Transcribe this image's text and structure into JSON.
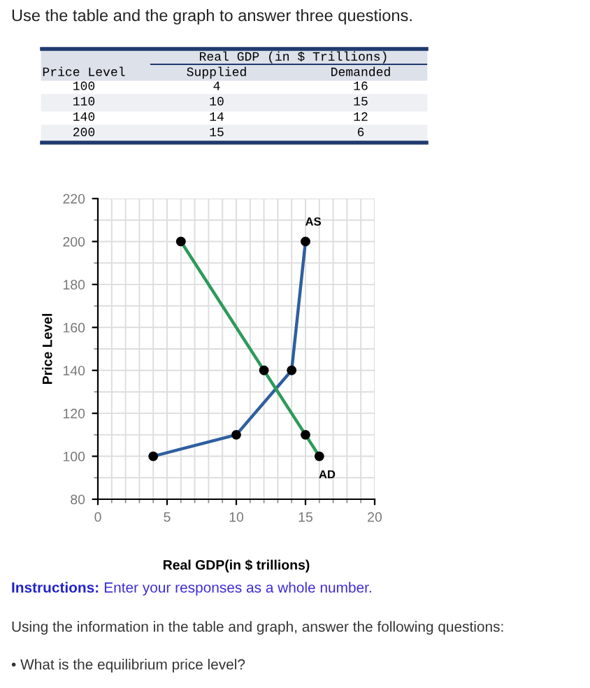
{
  "chart_data": [
    {
      "type": "other",
      "title": "Use the table and the graph to answer three questions.",
      "annotations": [
        "Real GDP (in $ Trillions)",
        "Price Level",
        "Supplied",
        "Demanded",
        "100",
        "4",
        "16",
        "110",
        "10",
        "15",
        "140",
        "14",
        "12",
        "200",
        "15",
        "6"
      ]
    },
    {
      "type": "line",
      "xlabel": "Real GDP(in $ trillions)",
      "ylabel": "Price Level",
      "series": [
        {
          "name": "AS",
          "color": "#2f5f9e",
          "x": [
            4,
            10,
            14,
            15
          ],
          "values": [
            100,
            110,
            140,
            200
          ]
        },
        {
          "name": "AD",
          "color": "#2e9a5a",
          "x": [
            16,
            15,
            12,
            6
          ],
          "values": [
            100,
            110,
            140,
            200
          ]
        }
      ],
      "xlim": [
        0,
        20
      ],
      "xticks": [
        0,
        5,
        10,
        15,
        20
      ],
      "ylim": [
        80,
        220
      ],
      "yticks": [
        80,
        100,
        120,
        140,
        160,
        180,
        200,
        220
      ],
      "grid": true,
      "marker": "circle",
      "line_style": "solid",
      "annotations": [
        "Instructions:",
        "Enter your responses as a whole number.",
        "Using the information in the table and graph, answer the following questions:",
        "• What is the equilibrium price level?"
      ]
    }
  ]
}
